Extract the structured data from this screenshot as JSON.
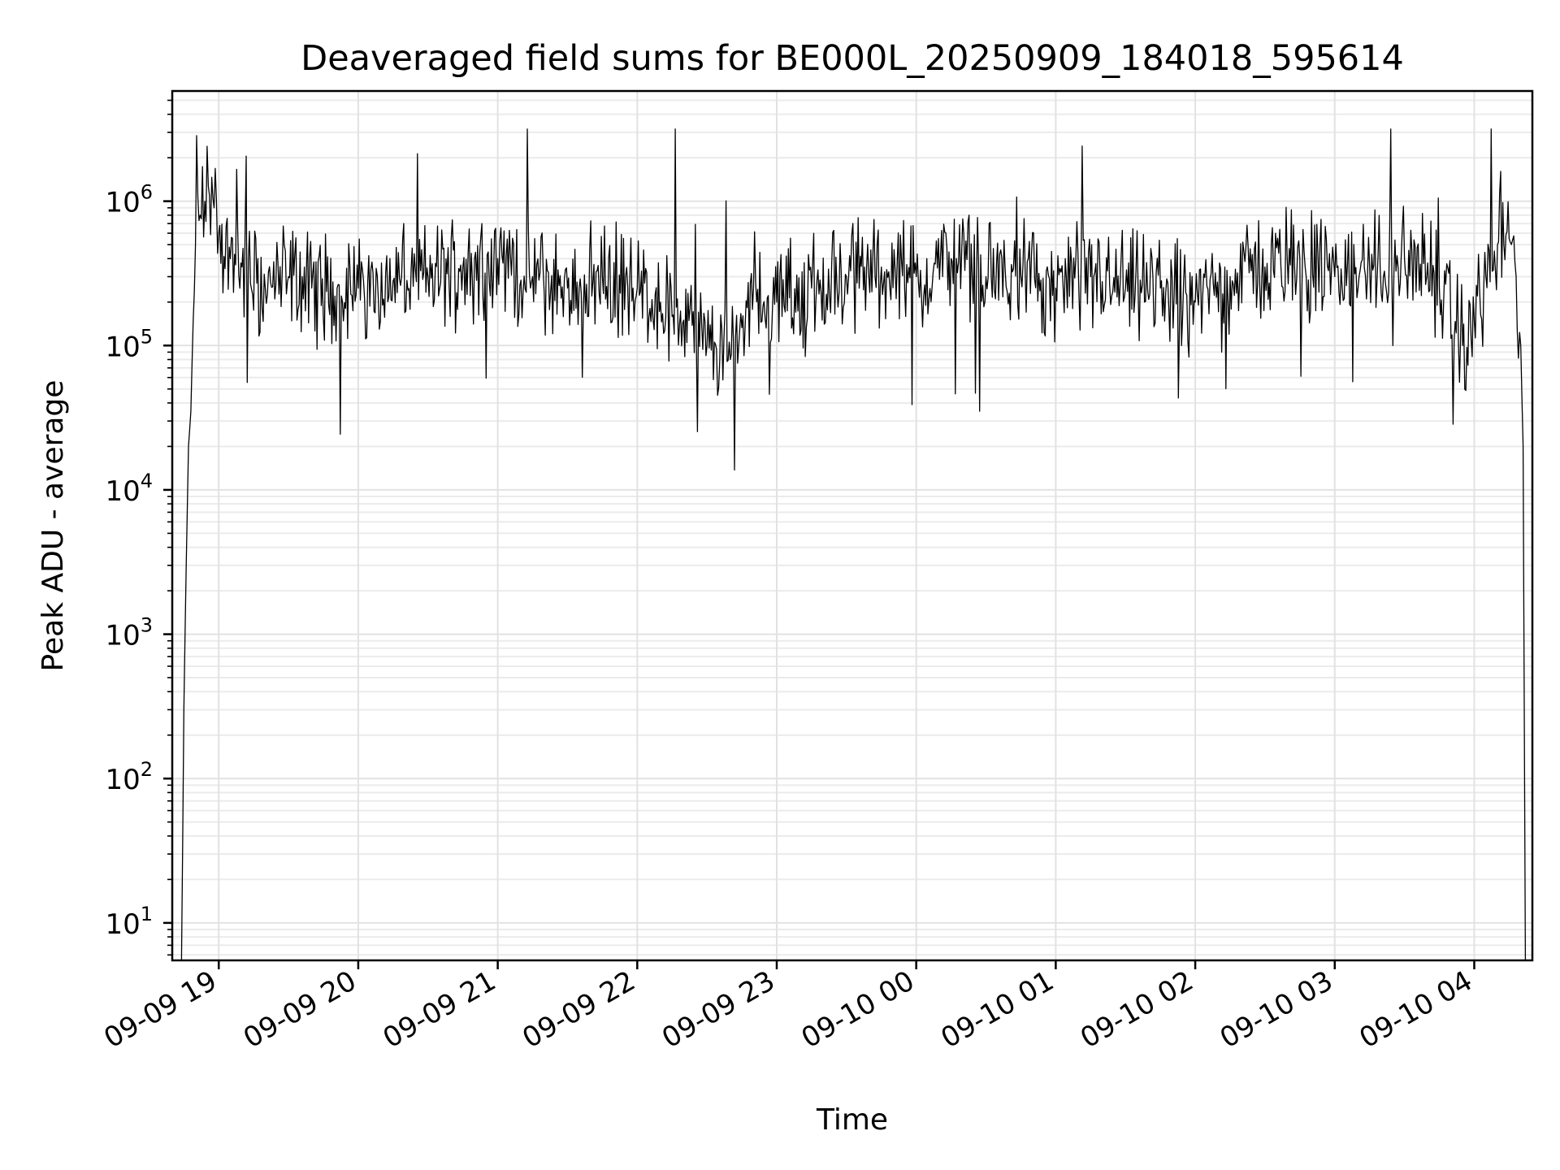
{
  "chart_data": {
    "type": "line",
    "title": "Deaveraged field sums for BE000L_20250909_184018_595614",
    "xlabel": "Time",
    "ylabel": "Peak ADU - average",
    "y_scale": "log",
    "ylim": [
      5.5,
      5800000
    ],
    "xlim": [
      "2025-09-09 18:40",
      "2025-09-10 04:25"
    ],
    "grid": true,
    "grid_minor": true,
    "legend": "none",
    "line_color": "#000000",
    "x_ticks": [
      {
        "label": "09-09 19",
        "value": "2025-09-09 19:00"
      },
      {
        "label": "09-09 20",
        "value": "2025-09-09 20:00"
      },
      {
        "label": "09-09 21",
        "value": "2025-09-09 21:00"
      },
      {
        "label": "09-09 22",
        "value": "2025-09-09 22:00"
      },
      {
        "label": "09-09 23",
        "value": "2025-09-09 23:00"
      },
      {
        "label": "09-10 00",
        "value": "2025-09-10 00:00"
      },
      {
        "label": "09-10 01",
        "value": "2025-09-10 01:00"
      },
      {
        "label": "09-10 02",
        "value": "2025-09-10 02:00"
      },
      {
        "label": "09-10 03",
        "value": "2025-09-10 03:00"
      },
      {
        "label": "09-10 04",
        "value": "2025-09-10 04:00"
      }
    ],
    "y_ticks": [
      {
        "base": "10",
        "exp": "1",
        "value": 10
      },
      {
        "base": "10",
        "exp": "2",
        "value": 100
      },
      {
        "base": "10",
        "exp": "3",
        "value": 1000
      },
      {
        "base": "10",
        "exp": "4",
        "value": 10000
      },
      {
        "base": "10",
        "exp": "5",
        "value": 100000
      },
      {
        "base": "10",
        "exp": "6",
        "value": 1000000
      }
    ],
    "series": [
      {
        "x": [
          "2025-09-09 18:44",
          "2025-09-09 18:45",
          "2025-09-09 18:46",
          "2025-09-09 18:47",
          "2025-09-09 18:48",
          "2025-09-09 18:49",
          "2025-09-09 18:50",
          "2025-09-09 18:52",
          "2025-09-09 18:54",
          "2025-09-09 18:56",
          "2025-09-09 18:58",
          "2025-09-09 19:00",
          "2025-09-09 19:05",
          "2025-09-09 19:10",
          "2025-09-09 19:20",
          "2025-09-09 19:30",
          "2025-09-09 19:40",
          "2025-09-09 19:50",
          "2025-09-09 20:00",
          "2025-09-09 20:15",
          "2025-09-09 20:30",
          "2025-09-09 20:45",
          "2025-09-09 21:00",
          "2025-09-09 21:15",
          "2025-09-09 21:30",
          "2025-09-09 21:45",
          "2025-09-09 22:00",
          "2025-09-09 22:10",
          "2025-09-09 22:20",
          "2025-09-09 22:30",
          "2025-09-09 22:40",
          "2025-09-09 22:50",
          "2025-09-09 23:00",
          "2025-09-09 23:15",
          "2025-09-09 23:30",
          "2025-09-09 23:45",
          "2025-09-10 00:00",
          "2025-09-10 00:15",
          "2025-09-10 00:30",
          "2025-09-10 00:45",
          "2025-09-10 01:00",
          "2025-09-10 01:15",
          "2025-09-10 01:30",
          "2025-09-10 01:45",
          "2025-09-10 02:00",
          "2025-09-10 02:15",
          "2025-09-10 02:30",
          "2025-09-10 02:45",
          "2025-09-10 03:00",
          "2025-09-10 03:15",
          "2025-09-10 03:30",
          "2025-09-10 03:45",
          "2025-09-10 03:55",
          "2025-09-10 04:00",
          "2025-09-10 04:05",
          "2025-09-10 04:10",
          "2025-09-10 04:15",
          "2025-09-10 04:18",
          "2025-09-10 04:20",
          "2025-09-10 04:21",
          "2025-09-10 04:22"
        ],
        "values": [
          5,
          300,
          3000,
          20000,
          35000,
          150000,
          500000,
          800000,
          1000000,
          1100000,
          900000,
          600000,
          400000,
          350000,
          250000,
          300000,
          250000,
          220000,
          250000,
          280000,
          300000,
          350000,
          400000,
          300000,
          250000,
          300000,
          250000,
          200000,
          150000,
          100000,
          80000,
          250000,
          200000,
          250000,
          300000,
          350000,
          300000,
          400000,
          300000,
          300000,
          250000,
          300000,
          250000,
          250000,
          200000,
          300000,
          350000,
          400000,
          300000,
          350000,
          400000,
          250000,
          100000,
          150000,
          300000,
          500000,
          550000,
          300000,
          100000,
          20000,
          5
        ]
      }
    ]
  }
}
